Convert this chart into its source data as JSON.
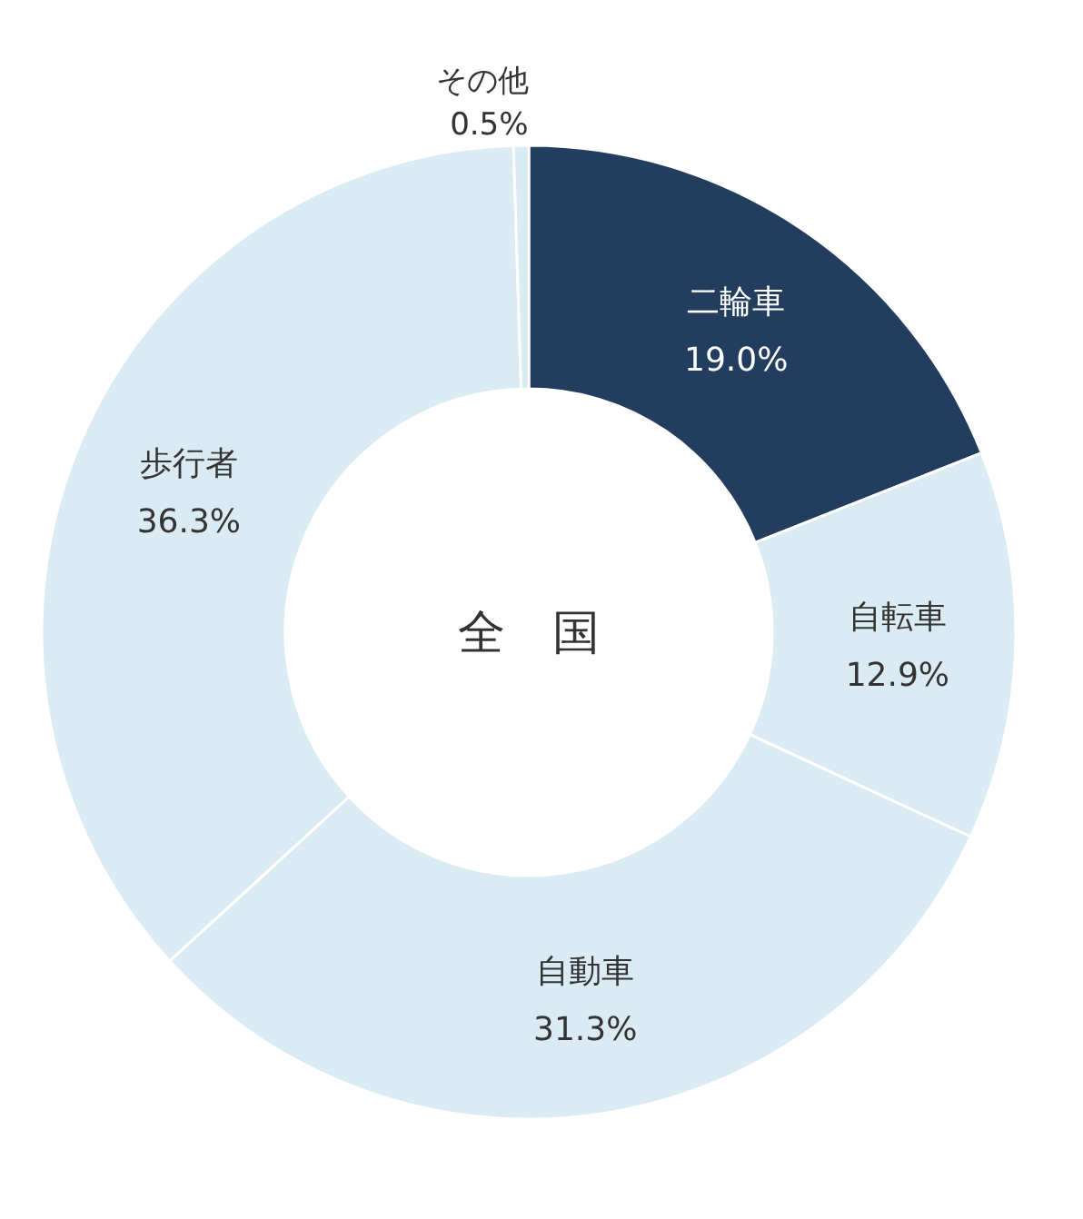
{
  "chart_data": {
    "type": "donut",
    "title": "全　国",
    "categories": [
      "二輪車",
      "自転車",
      "自動車",
      "歩行者",
      "その他"
    ],
    "values": [
      19.0,
      12.9,
      31.3,
      36.3,
      0.5
    ],
    "value_labels": [
      "19.0%",
      "12.9%",
      "31.3%",
      "36.3%",
      "0.5%"
    ],
    "colors": [
      "#223d5e",
      "#daebf3",
      "#daebf3",
      "#daebf3",
      "#daebf3"
    ]
  }
}
